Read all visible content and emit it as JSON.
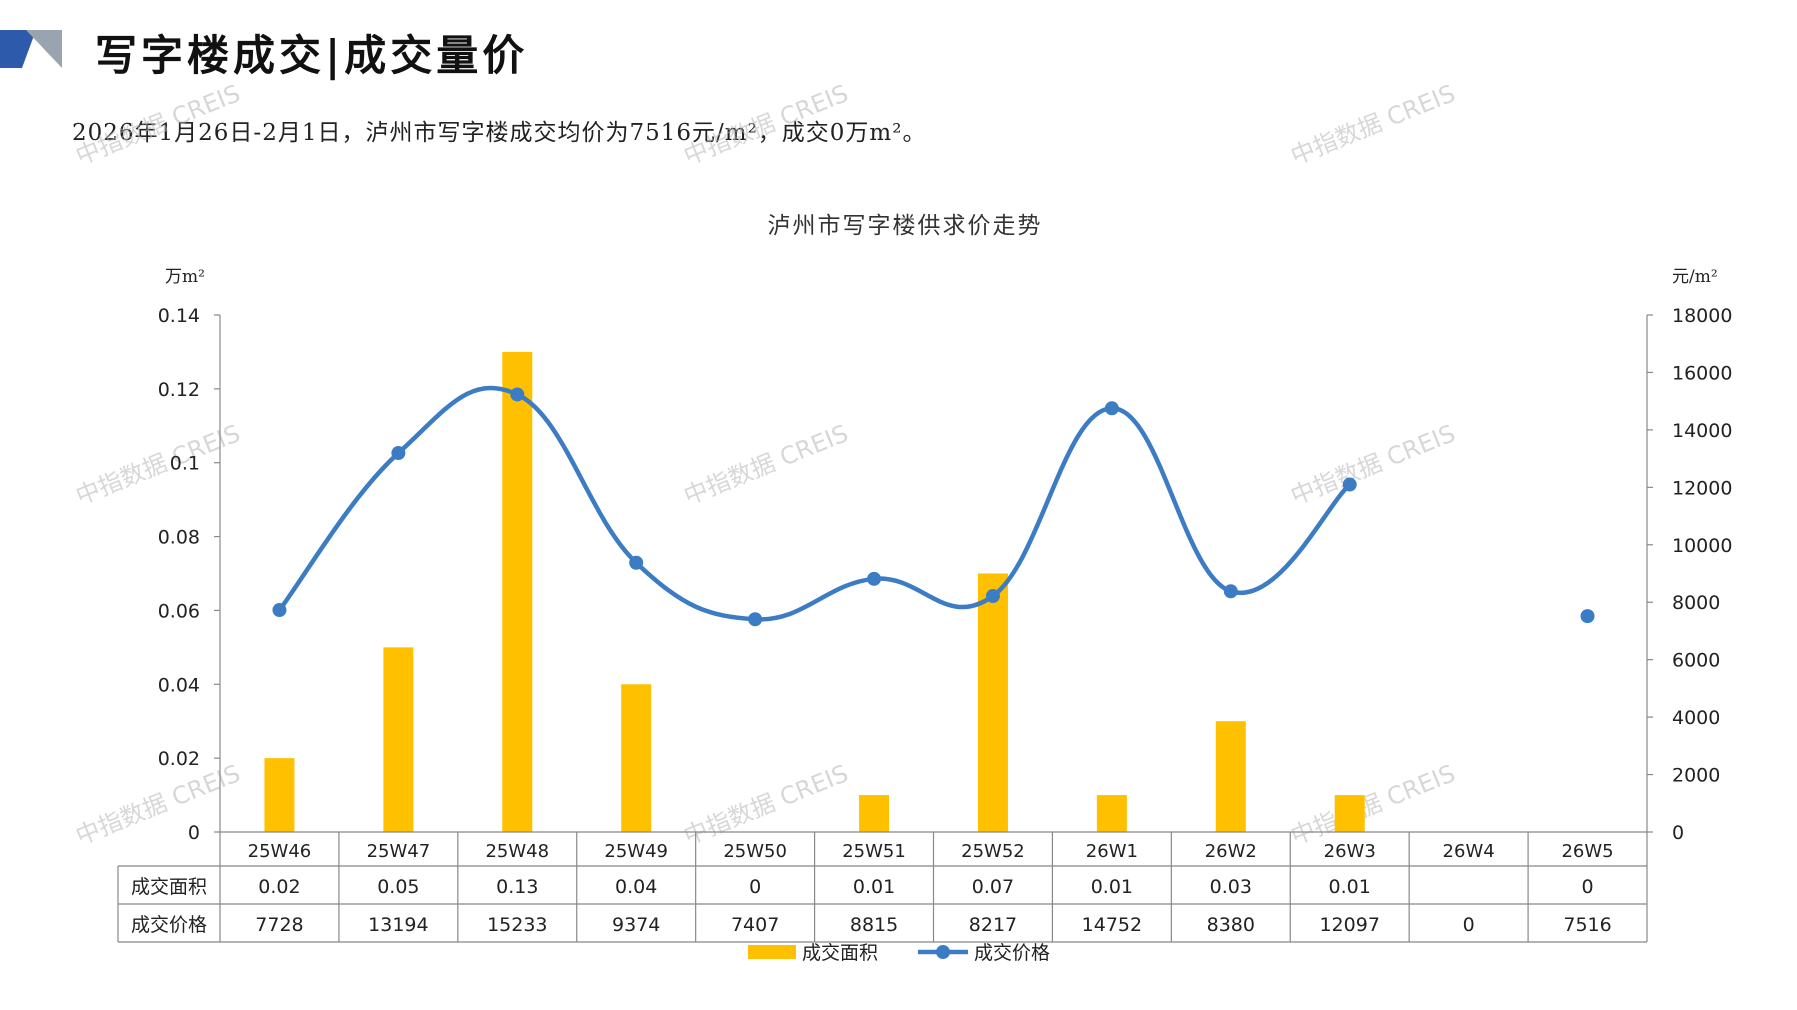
{
  "header": {
    "title": "写字楼成交|成交量价",
    "summary": "2026年1月26日-2月1日，泸州市写字楼成交均价为7516元/m²，成交0万m²。"
  },
  "watermark": "中指数据 CREIS",
  "colors": {
    "area": "#FFC000",
    "price": "#3C7CC4",
    "deco_blue": "#2E5AAC",
    "deco_grey": "#9AA3B0"
  },
  "chart_data": {
    "type": "bar+line",
    "title": "泸州市写字楼供求价走势",
    "left_axis_unit": "万m²",
    "right_axis_unit": "元/m²",
    "left_ylim": [
      0,
      0.14
    ],
    "left_ticks": [
      "0",
      "0.02",
      "0.04",
      "0.06",
      "0.08",
      "0.1",
      "0.12",
      "0.14"
    ],
    "right_ylim": [
      0,
      18000
    ],
    "right_ticks": [
      "0",
      "2000",
      "4000",
      "6000",
      "8000",
      "10000",
      "12000",
      "14000",
      "16000",
      "18000"
    ],
    "categories": [
      "25W46",
      "25W47",
      "25W48",
      "25W49",
      "25W50",
      "25W51",
      "25W52",
      "26W1",
      "26W2",
      "26W3",
      "26W4",
      "26W5"
    ],
    "series": [
      {
        "name": "成交面积",
        "type": "bar",
        "axis": "left",
        "values": [
          0.02,
          0.05,
          0.13,
          0.04,
          0,
          0.01,
          0.07,
          0.01,
          0.03,
          0.01,
          null,
          0
        ],
        "labels": [
          "0.02",
          "0.05",
          "0.13",
          "0.04",
          "0",
          "0.01",
          "0.07",
          "0.01",
          "0.03",
          "0.01",
          "",
          "0"
        ]
      },
      {
        "name": "成交价格",
        "type": "line",
        "axis": "right",
        "values": [
          7728,
          13194,
          15233,
          9374,
          7407,
          8815,
          8217,
          14752,
          8380,
          12097,
          0,
          7516
        ],
        "labels": [
          "7728",
          "13194",
          "15233",
          "9374",
          "7407",
          "8815",
          "8217",
          "14752",
          "8380",
          "12097",
          "0",
          "7516"
        ]
      }
    ],
    "legend_position": "bottom"
  }
}
